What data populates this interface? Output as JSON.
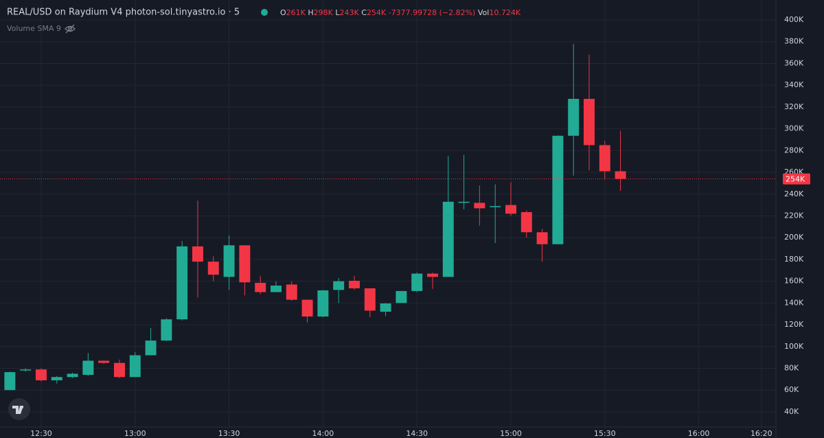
{
  "chart_data": {
    "type": "candlestick",
    "title": "REAL/USD on Raydium V4 photon-sol.tinyastro.io · 5",
    "subtitle": "Volume SMA 9",
    "legend": {
      "o_key": "O",
      "o": "261K",
      "h_key": "H",
      "h": "298K",
      "l_key": "L",
      "l": "243K",
      "c_key": "C",
      "c": "254K",
      "change": "-7377.99728 (−2.82%)",
      "vol_key": "Vol",
      "vol": "10.724K"
    },
    "up_color": "#22ab94",
    "down_color": "#f23645",
    "grid": true,
    "open": [
      60,
      78,
      79,
      69,
      72,
      74,
      87,
      85,
      72,
      92,
      105.5,
      125,
      192,
      178,
      164,
      193,
      158.5,
      150,
      157,
      143,
      127.6,
      152,
      160.4,
      153.5,
      132,
      140,
      151,
      167,
      164,
      232,
      232,
      228,
      230,
      223.5,
      205,
      194,
      293.6,
      327.5,
      285,
      261
    ],
    "high": [
      77,
      80,
      80,
      73,
      76,
      94,
      87,
      88,
      95,
      117,
      126,
      197,
      234,
      183,
      202,
      193,
      165,
      160,
      160,
      143,
      152,
      163,
      165,
      153,
      140,
      151,
      168,
      168,
      275,
      276,
      248,
      249,
      251,
      225,
      208,
      294,
      378,
      368,
      289,
      298
    ],
    "low": [
      60,
      77,
      68,
      66,
      71,
      73,
      84,
      71,
      72,
      92,
      105,
      124,
      145,
      160,
      152,
      147,
      148,
      150,
      142,
      122,
      127,
      140,
      152,
      127,
      128,
      140,
      150,
      153,
      164,
      226,
      211,
      195,
      220,
      200,
      178,
      194,
      257,
      262,
      254,
      243
    ],
    "close": [
      76.5,
      79,
      69,
      72,
      75,
      87,
      85,
      72,
      92,
      105.5,
      125,
      192,
      178,
      166,
      193,
      159,
      150,
      156,
      143,
      127.6,
      151.6,
      160,
      153.5,
      133,
      139.6,
      151,
      167,
      164,
      233,
      233,
      227,
      229,
      222,
      205,
      194,
      293.6,
      327.5,
      285,
      261,
      254
    ],
    "xlim": [
      -0.63,
      48.93
    ],
    "xticks": [
      {
        "value": 2,
        "label": "12:30"
      },
      {
        "value": 8,
        "label": "13:00"
      },
      {
        "value": 14,
        "label": "13:30"
      },
      {
        "value": 20,
        "label": "14:00"
      },
      {
        "value": 26,
        "label": "14:30"
      },
      {
        "value": 32,
        "label": "15:00"
      },
      {
        "value": 38,
        "label": "15:30"
      },
      {
        "value": 44,
        "label": "16:00"
      },
      {
        "value": 48,
        "label": "16:20"
      }
    ],
    "ylim": [
      26.1,
      418.3
    ],
    "yticks": [
      {
        "value": 40,
        "label": "40K"
      },
      {
        "value": 60,
        "label": "60K"
      },
      {
        "value": 80,
        "label": "80K"
      },
      {
        "value": 100,
        "label": "100K"
      },
      {
        "value": 120,
        "label": "120K"
      },
      {
        "value": 140,
        "label": "140K"
      },
      {
        "value": 160,
        "label": "160K"
      },
      {
        "value": 180,
        "label": "180K"
      },
      {
        "value": 200,
        "label": "200K"
      },
      {
        "value": 220,
        "label": "220K"
      },
      {
        "value": 240,
        "label": "240K"
      },
      {
        "value": 260,
        "label": "260K"
      },
      {
        "value": 280,
        "label": "280K"
      },
      {
        "value": 300,
        "label": "300K"
      },
      {
        "value": 320,
        "label": "320K"
      },
      {
        "value": 340,
        "label": "340K"
      },
      {
        "value": 360,
        "label": "360K"
      },
      {
        "value": 380,
        "label": "380K"
      },
      {
        "value": 400,
        "label": "400K"
      }
    ],
    "last_price": {
      "value": 254,
      "label": "254K"
    }
  }
}
